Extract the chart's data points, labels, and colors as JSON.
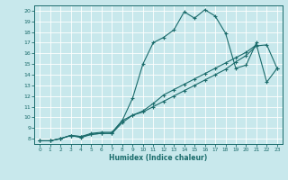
{
  "bg_color": "#c8e8ec",
  "grid_color": "#b0d8dc",
  "line_color": "#1a6b6b",
  "xlabel": "Humidex (Indice chaleur)",
  "xlim": [
    -0.5,
    23.5
  ],
  "ylim": [
    7.5,
    20.5
  ],
  "yticks": [
    8,
    9,
    10,
    11,
    12,
    13,
    14,
    15,
    16,
    17,
    18,
    19,
    20
  ],
  "xticks": [
    0,
    1,
    2,
    3,
    4,
    5,
    6,
    7,
    8,
    9,
    10,
    11,
    12,
    13,
    14,
    15,
    16,
    17,
    18,
    19,
    20,
    21,
    22,
    23
  ],
  "line1_x": [
    0,
    1,
    2,
    3,
    4,
    5,
    6,
    7,
    8,
    9,
    10,
    11,
    12,
    13,
    14,
    15,
    16,
    17,
    18,
    19,
    20,
    21,
    22,
    23
  ],
  "line1_y": [
    7.8,
    7.8,
    8.0,
    8.3,
    8.2,
    8.4,
    8.5,
    8.5,
    9.7,
    10.2,
    10.5,
    11.0,
    11.5,
    12.0,
    12.5,
    13.0,
    13.5,
    14.0,
    14.5,
    15.2,
    15.8,
    16.7,
    16.8,
    14.6
  ],
  "line2_x": [
    0,
    1,
    2,
    3,
    4,
    5,
    6,
    7,
    8,
    9,
    10,
    11,
    12,
    13,
    14,
    15,
    16,
    17,
    18,
    19,
    20,
    21,
    22,
    23
  ],
  "line2_y": [
    7.8,
    7.8,
    8.0,
    8.3,
    8.1,
    8.4,
    8.5,
    8.5,
    9.5,
    10.2,
    10.6,
    11.3,
    12.1,
    12.6,
    13.1,
    13.6,
    14.1,
    14.6,
    15.1,
    15.6,
    16.1,
    16.8,
    13.3,
    14.6
  ],
  "line3_x": [
    0,
    1,
    2,
    3,
    4,
    5,
    6,
    7,
    8,
    9,
    10,
    11,
    12,
    13,
    14,
    15,
    16,
    17,
    18,
    19,
    20,
    21
  ],
  "line3_y": [
    7.8,
    7.8,
    8.0,
    8.3,
    8.2,
    8.5,
    8.6,
    8.6,
    9.7,
    11.8,
    15.0,
    17.0,
    17.5,
    18.2,
    19.9,
    19.3,
    20.1,
    19.5,
    17.9,
    14.6,
    14.9,
    17.0
  ]
}
